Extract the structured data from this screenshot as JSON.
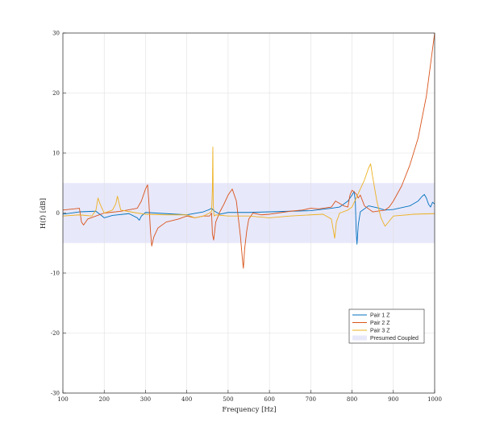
{
  "chart_data": {
    "type": "line",
    "xlabel": "Frequency [Hz]",
    "ylabel": "H(f) [dB]",
    "xlim": [
      100,
      1000
    ],
    "ylim": [
      -30,
      30
    ],
    "xticks": [
      "100",
      "200",
      "300",
      "400",
      "500",
      "600",
      "700",
      "800",
      "900",
      "1000"
    ],
    "yticks": [
      "30",
      "20",
      "10",
      "0",
      "-10",
      "-20",
      "-30"
    ],
    "grid": true,
    "legend_position": "bottom-right",
    "band": {
      "name": "Presumed Coupled",
      "y_range": [
        -5,
        5
      ],
      "color": "#e8e8fb"
    },
    "series": [
      {
        "name": "Pair 1 Z",
        "color": "#0072bd",
        "x": [
          100,
          140,
          180,
          195,
          200,
          220,
          260,
          280,
          285,
          290,
          300,
          350,
          400,
          440,
          455,
          460,
          465,
          480,
          500,
          550,
          600,
          650,
          700,
          750,
          770,
          790,
          800,
          805,
          808,
          810,
          812,
          815,
          820,
          840,
          860,
          880,
          900,
          920,
          940,
          960,
          970,
          975,
          980,
          985,
          990,
          995,
          1000
        ],
        "y": [
          -0.2,
          0.2,
          0.3,
          -0.5,
          -0.8,
          -0.4,
          -0.1,
          -0.8,
          -1.2,
          -0.5,
          0.1,
          -0.1,
          -0.3,
          0.2,
          0.6,
          0.8,
          0.4,
          -0.2,
          0.1,
          0.1,
          0.2,
          0.3,
          0.4,
          0.8,
          1.0,
          2.0,
          3.0,
          3.6,
          2.0,
          -3.0,
          -5.2,
          -2.0,
          0.2,
          1.2,
          0.9,
          0.5,
          0.6,
          0.9,
          1.2,
          2.0,
          2.8,
          3.1,
          2.5,
          1.5,
          1.0,
          1.8,
          1.5
        ]
      },
      {
        "name": "Pair 2 Z",
        "color": "#d95319",
        "x": [
          100,
          140,
          145,
          150,
          160,
          180,
          200,
          240,
          280,
          290,
          300,
          305,
          308,
          312,
          315,
          320,
          330,
          350,
          380,
          400,
          420,
          440,
          455,
          460,
          462,
          465,
          470,
          480,
          490,
          500,
          505,
          510,
          520,
          530,
          535,
          537,
          540,
          545,
          550,
          560,
          580,
          600,
          620,
          650,
          680,
          700,
          720,
          750,
          760,
          780,
          790,
          795,
          800,
          810,
          815,
          820,
          830,
          850,
          860,
          880,
          890,
          900,
          920,
          940,
          960,
          980,
          1000
        ],
        "y": [
          0.5,
          0.8,
          -1.5,
          -2.0,
          -1.0,
          -0.5,
          0.0,
          0.3,
          0.8,
          2.0,
          4.0,
          4.7,
          2.0,
          -3.0,
          -5.5,
          -4.0,
          -2.5,
          -1.5,
          -1.0,
          -0.5,
          -0.8,
          -0.5,
          -0.5,
          0.0,
          -3.5,
          -4.5,
          -1.5,
          0.2,
          1.5,
          3.0,
          3.5,
          4.0,
          2.0,
          -4.0,
          -8.0,
          -9.2,
          -6.0,
          -3.0,
          -1.0,
          0.0,
          -0.3,
          -0.2,
          0.0,
          0.3,
          0.5,
          0.8,
          0.7,
          1.0,
          2.0,
          1.2,
          1.0,
          3.0,
          3.8,
          3.2,
          2.5,
          3.0,
          1.2,
          0.2,
          0.3,
          0.5,
          1.0,
          2.0,
          4.5,
          8.0,
          12.5,
          19.5,
          30.0
        ]
      },
      {
        "name": "Pair 3 Z",
        "color": "#edb120",
        "x": [
          100,
          140,
          170,
          180,
          185,
          190,
          200,
          220,
          228,
          232,
          240,
          280,
          300,
          350,
          400,
          420,
          440,
          455,
          460,
          462,
          463,
          464,
          466,
          470,
          500,
          550,
          600,
          650,
          700,
          730,
          750,
          755,
          758,
          762,
          770,
          790,
          800,
          810,
          820,
          830,
          840,
          845,
          850,
          860,
          870,
          880,
          900,
          950,
          1000
        ],
        "y": [
          -0.5,
          -0.3,
          -0.5,
          0.5,
          2.5,
          1.5,
          0.0,
          0.5,
          1.5,
          2.8,
          0.5,
          0.0,
          -0.2,
          -0.3,
          -0.3,
          -0.8,
          -0.5,
          0.0,
          0.3,
          4.0,
          11.0,
          1.5,
          -0.5,
          -0.3,
          -0.5,
          -0.5,
          -0.8,
          -0.5,
          -0.3,
          -0.2,
          -1.0,
          -3.0,
          -4.2,
          -1.5,
          0.0,
          0.5,
          1.0,
          2.5,
          4.0,
          5.5,
          7.5,
          8.2,
          6.0,
          2.0,
          -0.8,
          -2.2,
          -0.5,
          -0.2,
          -0.1
        ]
      }
    ]
  }
}
